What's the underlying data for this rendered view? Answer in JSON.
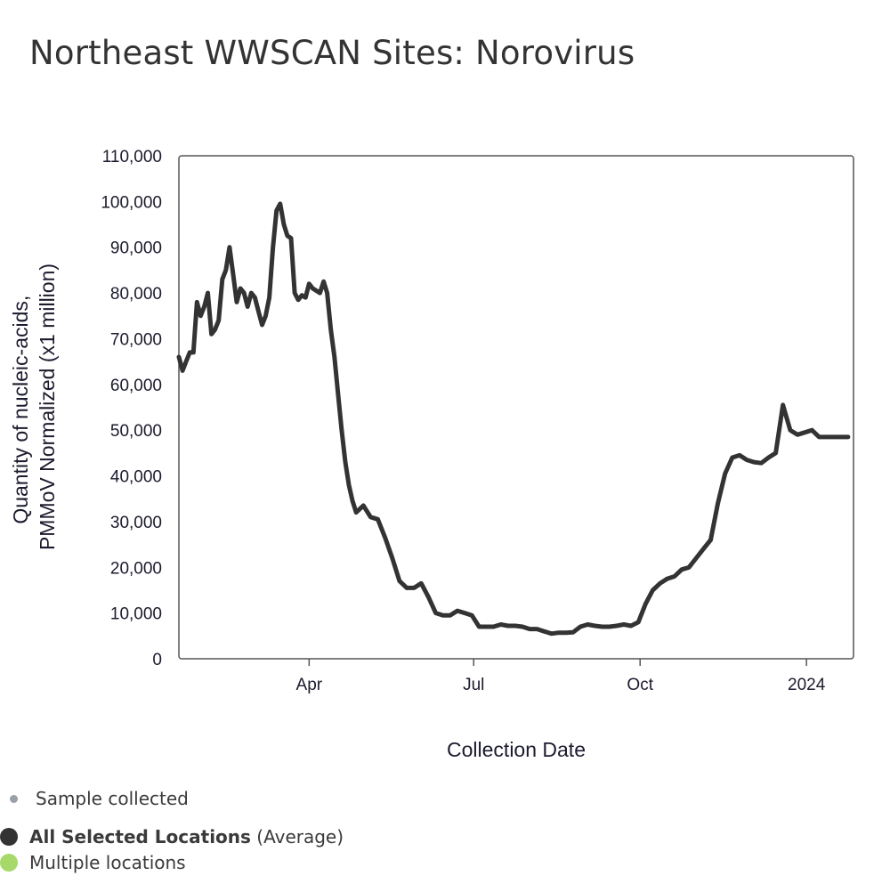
{
  "chart_data": {
    "type": "line",
    "title": "Northeast WWSCAN Sites: Norovirus",
    "xlabel": "Collection Date",
    "ylabel_lines": [
      "Quantity of nucleic-acids,",
      "PMMoV Normalized (x1 million)"
    ],
    "y_ticks": [
      "0",
      "10,000",
      "20,000",
      "30,000",
      "40,000",
      "50,000",
      "60,000",
      "70,000",
      "80,000",
      "90,000",
      "100,000",
      "110,000"
    ],
    "x_ticks": [
      {
        "label": "Apr",
        "date": "2023-04-01"
      },
      {
        "label": "Jul",
        "date": "2023-07-01"
      },
      {
        "label": "Oct",
        "date": "2023-10-01"
      },
      {
        "label": "2024",
        "date": "2024-01-01"
      }
    ],
    "xlim": [
      "2023-01-19",
      "2024-01-27"
    ],
    "ylim": [
      0,
      110000
    ],
    "grid": false,
    "series": [
      {
        "name": "All Selected Locations",
        "color": "#333333",
        "x": [
          "2023-01-19",
          "2023-01-21",
          "2023-01-23",
          "2023-01-25",
          "2023-01-27",
          "2023-01-29",
          "2023-01-31",
          "2023-02-02",
          "2023-02-04",
          "2023-02-06",
          "2023-02-08",
          "2023-02-10",
          "2023-02-12",
          "2023-02-14",
          "2023-02-16",
          "2023-02-18",
          "2023-02-20",
          "2023-02-22",
          "2023-02-24",
          "2023-02-26",
          "2023-02-28",
          "2023-03-02",
          "2023-03-04",
          "2023-03-06",
          "2023-03-08",
          "2023-03-10",
          "2023-03-12",
          "2023-03-14",
          "2023-03-16",
          "2023-03-18",
          "2023-03-20",
          "2023-03-22",
          "2023-03-24",
          "2023-03-26",
          "2023-03-28",
          "2023-03-30",
          "2023-04-01",
          "2023-04-03",
          "2023-04-05",
          "2023-04-07",
          "2023-04-09",
          "2023-04-11",
          "2023-04-13",
          "2023-04-15",
          "2023-04-17",
          "2023-04-19",
          "2023-04-21",
          "2023-04-23",
          "2023-04-25",
          "2023-04-27",
          "2023-05-01",
          "2023-05-05",
          "2023-05-09",
          "2023-05-13",
          "2023-05-17",
          "2023-05-21",
          "2023-05-25",
          "2023-05-29",
          "2023-06-02",
          "2023-06-06",
          "2023-06-10",
          "2023-06-14",
          "2023-06-18",
          "2023-06-22",
          "2023-06-26",
          "2023-06-30",
          "2023-07-04",
          "2023-07-08",
          "2023-07-12",
          "2023-07-16",
          "2023-07-20",
          "2023-07-24",
          "2023-07-28",
          "2023-08-01",
          "2023-08-05",
          "2023-08-09",
          "2023-08-13",
          "2023-08-17",
          "2023-08-21",
          "2023-08-25",
          "2023-08-29",
          "2023-09-02",
          "2023-09-06",
          "2023-09-10",
          "2023-09-14",
          "2023-09-18",
          "2023-09-22",
          "2023-09-26",
          "2023-09-30",
          "2023-10-04",
          "2023-10-08",
          "2023-10-12",
          "2023-10-16",
          "2023-10-20",
          "2023-10-24",
          "2023-10-28",
          "2023-11-01",
          "2023-11-05",
          "2023-11-09",
          "2023-11-13",
          "2023-11-17",
          "2023-11-21",
          "2023-11-25",
          "2023-11-29",
          "2023-12-03",
          "2023-12-07",
          "2023-12-11",
          "2023-12-15",
          "2023-12-19",
          "2023-12-23",
          "2023-12-27",
          "2023-12-31",
          "2024-01-04",
          "2024-01-08",
          "2024-01-12",
          "2024-01-16",
          "2024-01-20",
          "2024-01-22",
          "2024-01-24"
        ],
        "y": [
          66000,
          63000,
          65000,
          67000,
          67000,
          78000,
          75000,
          77000,
          80000,
          71000,
          72000,
          74000,
          83000,
          85000,
          90000,
          84000,
          78000,
          81000,
          80000,
          77000,
          80000,
          79000,
          76000,
          73000,
          75000,
          79000,
          90000,
          98000,
          99500,
          95000,
          92500,
          92000,
          80000,
          78500,
          79500,
          79000,
          82000,
          81000,
          80500,
          80000,
          82500,
          80000,
          72000,
          66000,
          58000,
          50000,
          43000,
          38000,
          34500,
          32000,
          33500,
          31000,
          30500,
          26500,
          22000,
          17000,
          15500,
          15500,
          16500,
          13500,
          10000,
          9500,
          9500,
          10500,
          10000,
          9500,
          7000,
          7000,
          7000,
          7500,
          7200,
          7200,
          7000,
          6500,
          6500,
          6000,
          5500,
          5700,
          5700,
          5800,
          7000,
          7500,
          7200,
          7000,
          7000,
          7200,
          7500,
          7200,
          8000,
          12000,
          15000,
          16500,
          17500,
          18000,
          19500,
          20000,
          22000,
          24000,
          26000,
          34000,
          40500,
          44000,
          44500,
          43500,
          43000,
          42800,
          44000,
          45000,
          55500,
          50000,
          49000,
          49500,
          50000,
          48500,
          48500,
          48500,
          48500,
          48500,
          48500
        ]
      }
    ]
  },
  "legend": {
    "sample_collected": "Sample collected",
    "all_selected_bold": "All Selected Locations",
    "all_selected_suffix": " (Average)",
    "multiple_locations": "Multiple locations",
    "colors": {
      "sample": "#9aa0a8",
      "average": "#333333",
      "multiple": "#a6d96a"
    }
  }
}
